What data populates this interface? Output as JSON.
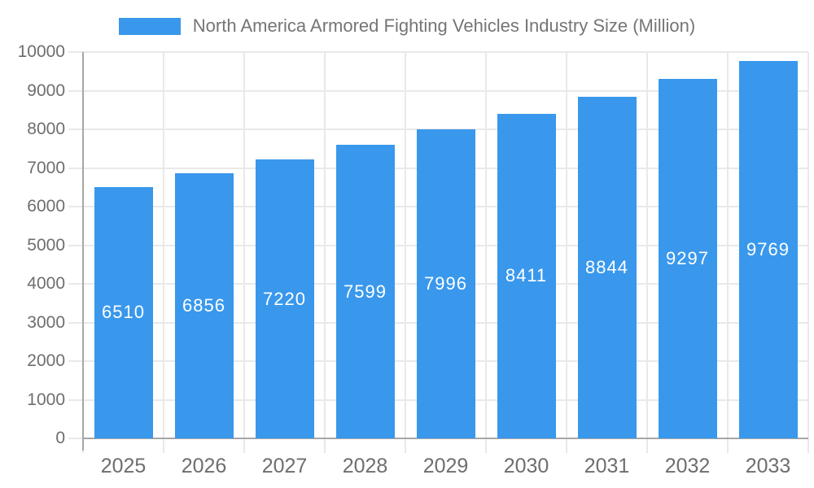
{
  "chart_data": {
    "type": "bar",
    "title": "North America Armored Fighting Vehicles Industry Size (Million)",
    "categories": [
      "2025",
      "2026",
      "2027",
      "2028",
      "2029",
      "2030",
      "2031",
      "2032",
      "2033"
    ],
    "values": [
      6510,
      6856,
      7220,
      7599,
      7996,
      8411,
      8844,
      9297,
      9769
    ],
    "series": [
      {
        "name": "North America Armored Fighting Vehicles Industry Size (Million)",
        "values": [
          6510,
          6856,
          7220,
          7599,
          7996,
          8411,
          8844,
          9297,
          9769
        ]
      }
    ],
    "xlabel": "",
    "ylabel": "",
    "ylim": [
      0,
      10000
    ],
    "ytick_step": 1000,
    "ytick_labels": [
      "0",
      "1000",
      "2000",
      "3000",
      "4000",
      "5000",
      "6000",
      "7000",
      "8000",
      "9000",
      "10000"
    ],
    "grid": true,
    "legend_position": "top",
    "bar_label_position": "inside-center"
  },
  "colors": {
    "bar": "#3998EC",
    "grid": "#e9e9e9",
    "axis": "#a6a6a6",
    "tick_label": "#6e6e6e",
    "legend_label": "#757575",
    "bar_label": "#ffffff",
    "background": "#ffffff"
  }
}
